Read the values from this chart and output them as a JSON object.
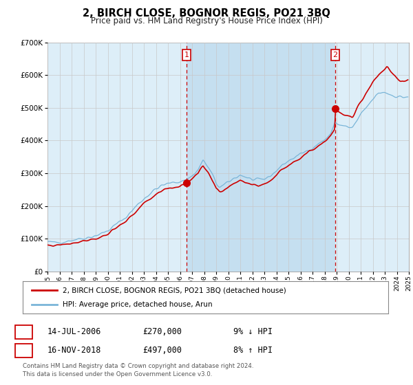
{
  "title": "2, BIRCH CLOSE, BOGNOR REGIS, PO21 3BQ",
  "subtitle": "Price paid vs. HM Land Registry's House Price Index (HPI)",
  "legend_line1": "2, BIRCH CLOSE, BOGNOR REGIS, PO21 3BQ (detached house)",
  "legend_line2": "HPI: Average price, detached house, Arun",
  "transaction1_date": "14-JUL-2006",
  "transaction1_price": "£270,000",
  "transaction1_hpi": "9% ↓ HPI",
  "transaction2_date": "16-NOV-2018",
  "transaction2_price": "£497,000",
  "transaction2_hpi": "8% ↑ HPI",
  "footer": "Contains HM Land Registry data © Crown copyright and database right 2024.\nThis data is licensed under the Open Government Licence v3.0.",
  "hpi_color": "#7ab5d8",
  "price_color": "#cc0000",
  "marker_color": "#cc0000",
  "vline_color": "#cc0000",
  "background_color": "#ddeef8",
  "highlight_color": "#c5dff0",
  "plot_bg": "#ffffff",
  "grid_color": "#c8c8c8",
  "ylim": [
    0,
    700000
  ],
  "yticks": [
    0,
    100000,
    200000,
    300000,
    400000,
    500000,
    600000,
    700000
  ],
  "transaction1_x": 2006.54,
  "transaction1_y": 270000,
  "transaction2_x": 2018.88,
  "transaction2_y": 497000,
  "xmin": 1995,
  "xmax": 2025
}
